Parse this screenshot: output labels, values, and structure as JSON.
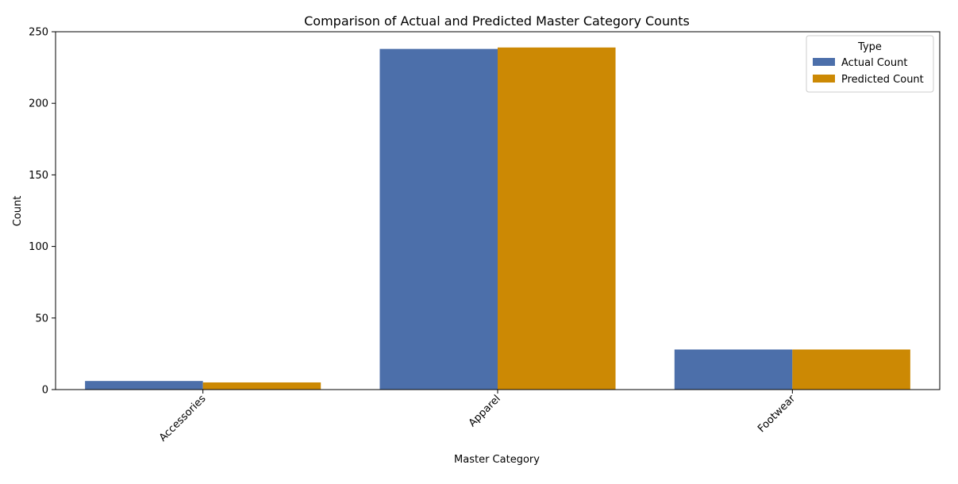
{
  "chart_data": {
    "type": "bar",
    "title": "Comparison of Actual and Predicted Master Category Counts",
    "xlabel": "Master Category",
    "ylabel": "Count",
    "categories": [
      "Accessories",
      "Apparel",
      "Footwear"
    ],
    "series": [
      {
        "name": "Actual Count",
        "color": "#4c6faa",
        "values": [
          6,
          238,
          28
        ]
      },
      {
        "name": "Predicted Count",
        "color": "#cc8904",
        "values": [
          5,
          239,
          28
        ]
      }
    ],
    "ylim": [
      0,
      250
    ],
    "yticks": [
      0,
      50,
      100,
      150,
      200,
      250
    ],
    "legend": {
      "title": "Type",
      "placement": "top-right"
    },
    "grid": false
  }
}
